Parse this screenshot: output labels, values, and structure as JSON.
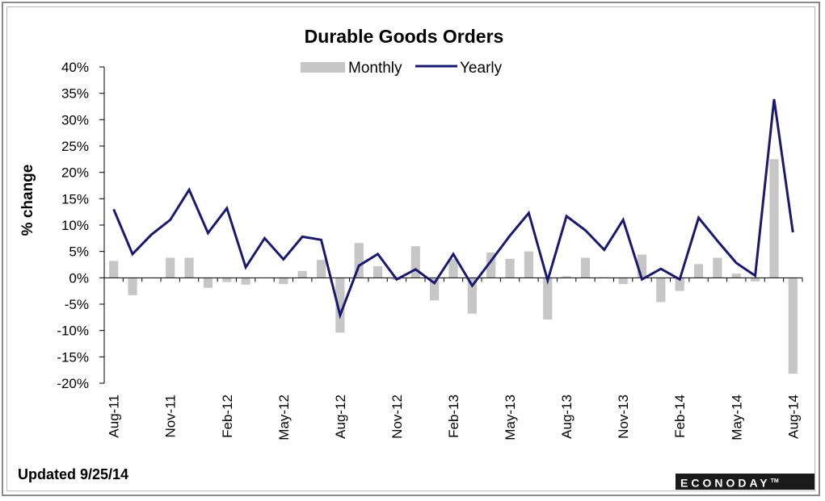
{
  "footer": {
    "updated": "Updated 9/25/14",
    "brand": "ECONODAY",
    "brand_mark": "TM"
  },
  "colors": {
    "bar": "#c6c6c6",
    "line": "#191970"
  },
  "chart_data": {
    "type": "bar+line",
    "title": "Durable Goods Orders",
    "ylabel": "% change",
    "ylim": [
      -20,
      40
    ],
    "ytick_labels": [
      "40%",
      "35%",
      "30%",
      "25%",
      "20%",
      "15%",
      "10%",
      "5%",
      "0%",
      "-5%",
      "-10%",
      "-15%",
      "-20%"
    ],
    "ytick_values": [
      40,
      35,
      30,
      25,
      20,
      15,
      10,
      5,
      0,
      -5,
      -10,
      -15,
      -20
    ],
    "legend": {
      "position": "top-center"
    },
    "categories": [
      "Aug-11",
      "Sep-11",
      "Oct-11",
      "Nov-11",
      "Dec-11",
      "Jan-12",
      "Feb-12",
      "Mar-12",
      "Apr-12",
      "May-12",
      "Jun-12",
      "Jul-12",
      "Aug-12",
      "Sep-12",
      "Oct-12",
      "Nov-12",
      "Dec-12",
      "Jan-13",
      "Feb-13",
      "Mar-13",
      "Apr-13",
      "May-13",
      "Jun-13",
      "Jul-13",
      "Aug-13",
      "Sep-13",
      "Oct-13",
      "Nov-13",
      "Dec-13",
      "Jan-14",
      "Feb-14",
      "Mar-14",
      "Apr-14",
      "May-14",
      "Jun-14",
      "Jul-14",
      "Aug-14"
    ],
    "x_tick_labels": [
      "Aug-11",
      "Nov-11",
      "Feb-12",
      "May-12",
      "Aug-12",
      "Nov-12",
      "Feb-13",
      "May-13",
      "Aug-13",
      "Nov-13",
      "Feb-14",
      "May-14",
      "Aug-14"
    ],
    "series": [
      {
        "name": "Monthly",
        "type": "bar",
        "values": [
          3.2,
          -3.3,
          0.0,
          3.8,
          3.8,
          -1.9,
          -0.8,
          -1.3,
          0.0,
          -1.2,
          1.3,
          3.4,
          -10.4,
          6.6,
          2.2,
          -0.4,
          6.0,
          -4.3,
          3.6,
          -6.8,
          4.8,
          3.6,
          5.0,
          -7.9,
          0.3,
          3.8,
          0.1,
          -1.2,
          4.4,
          -4.6,
          -2.5,
          2.6,
          3.8,
          0.8,
          -0.7,
          22.5,
          -18.2
        ]
      },
      {
        "name": "Yearly",
        "type": "line",
        "values": [
          13.0,
          4.5,
          8.2,
          11.0,
          16.7,
          8.5,
          13.2,
          2.0,
          7.5,
          3.5,
          7.8,
          7.2,
          -7.1,
          2.3,
          4.5,
          -0.3,
          1.6,
          -1.0,
          4.5,
          -1.5,
          3.2,
          8.0,
          12.3,
          -0.5,
          11.7,
          9.0,
          5.3,
          11.0,
          -0.3,
          1.7,
          -0.3,
          11.4,
          7.0,
          2.8,
          0.4,
          33.9,
          8.6
        ]
      }
    ]
  }
}
